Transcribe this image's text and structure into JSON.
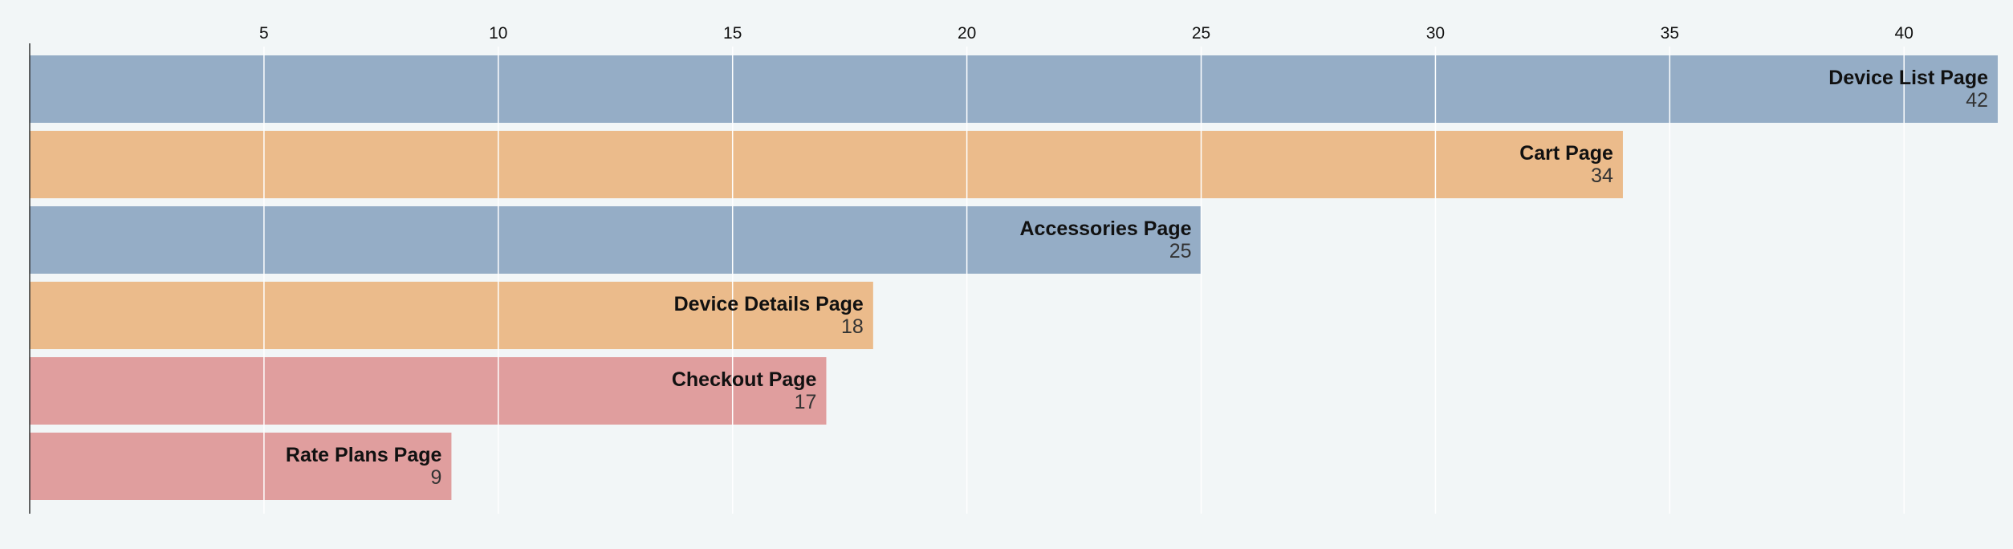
{
  "chart_data": {
    "type": "bar",
    "orientation": "horizontal",
    "title": "",
    "xlabel": "",
    "ylabel": "",
    "xlim": [
      0,
      42
    ],
    "x_ticks": [
      5,
      10,
      15,
      20,
      25,
      30,
      35,
      40
    ],
    "x_axis_position": "top",
    "grid": true,
    "legend": "none",
    "categories": [
      "Device List Page",
      "Cart Page",
      "Accessories Page",
      "Device Details Page",
      "Checkout Page",
      "Rate Plans Page"
    ],
    "values": [
      42,
      34,
      25,
      18,
      17,
      9
    ],
    "bar_colors": [
      "#95adc6",
      "#ebbb8b",
      "#95adc6",
      "#ebbb8b",
      "#e09e9e",
      "#e09e9e"
    ],
    "background_color": "#f2f6f7",
    "gridline_color": "#ffffff",
    "axis_color": "#333333"
  }
}
